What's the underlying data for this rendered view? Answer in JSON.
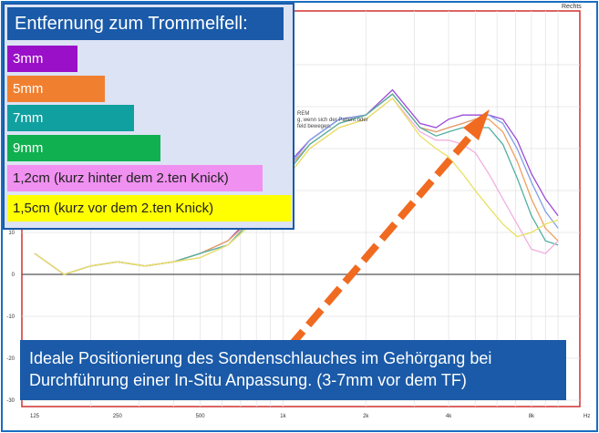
{
  "legend": {
    "title": "Entfernung zum Trommelfell:",
    "items": [
      {
        "label": "3mm",
        "color": "#9a10c8",
        "text_color": "#ffffff"
      },
      {
        "label": "5mm",
        "color": "#f08030",
        "text_color": "#ffffff"
      },
      {
        "label": "7mm",
        "color": "#10a0a0",
        "text_color": "#ffffff"
      },
      {
        "label": "9mm",
        "color": "#10b050",
        "text_color": "#ffffff"
      },
      {
        "label": "1,2cm (kurz hinter dem 2.ten Knick)",
        "color": "#f090f0",
        "text_color": "#222222"
      },
      {
        "label": "1,5cm (kurz vor dem 2.ten Knick)",
        "color": "#ffff00",
        "text_color": "#222222"
      }
    ]
  },
  "caption": {
    "line1": "Ideale Positionierung des Sondenschlauches im Gehörgang bei",
    "line2": "Durchführung einer In-Situ Anpassung. (3-7mm vor dem TF)"
  },
  "side_label": "Rechts",
  "background_note": {
    "lines": [
      "REM",
      "g, wenn sich der Patient oder",
      "feld bewegen."
    ]
  },
  "arrow_color": "#f06a20",
  "chart_data": {
    "type": "line",
    "x_unit": "Hz",
    "x_ticks": [
      125,
      250,
      500,
      1000,
      2000,
      4000,
      8000
    ],
    "x_tick_labels": [
      "125",
      "250",
      "500",
      "1k",
      "2k",
      "4k",
      "8k"
    ],
    "x_axis_label": "Hz",
    "xlim": [
      125,
      12000
    ],
    "y_ticks": [
      -30,
      -20,
      -10,
      0,
      10
    ],
    "y_tick_labels": [
      "-30",
      "-20",
      "-10",
      "0",
      "10"
    ],
    "ylim": [
      -30,
      50
    ],
    "grid": true,
    "log_x": true,
    "x": [
      125,
      160,
      200,
      250,
      315,
      400,
      500,
      630,
      800,
      1000,
      1250,
      1600,
      2000,
      2500,
      3150,
      3600,
      4000,
      4500,
      5000,
      5600,
      6300,
      7100,
      8000,
      9000,
      10000
    ],
    "series": [
      {
        "color": "#9a4ad8",
        "values": [
          5,
          0,
          2,
          3,
          2,
          3,
          5,
          8,
          15,
          25,
          32,
          37,
          38,
          44,
          36,
          35,
          37,
          38,
          38,
          38,
          37,
          32,
          24,
          18,
          14
        ]
      },
      {
        "color": "#7fa0e8",
        "values": [
          5,
          0,
          2,
          3,
          2,
          3,
          5,
          8,
          14,
          24,
          32,
          37,
          38,
          43,
          35,
          34,
          35,
          36,
          37,
          38,
          36,
          30,
          22,
          15,
          11
        ]
      },
      {
        "color": "#f0a060",
        "values": [
          5,
          0,
          2,
          3,
          2,
          3,
          5,
          8,
          14,
          24,
          31,
          36,
          38,
          43,
          35,
          34,
          35,
          36,
          37,
          37,
          34,
          27,
          18,
          11,
          8
        ]
      },
      {
        "color": "#50b0a0",
        "values": [
          5,
          0,
          2,
          3,
          2,
          3,
          5,
          7,
          14,
          23,
          31,
          36,
          38,
          43,
          35,
          33,
          34,
          35,
          35,
          35,
          31,
          23,
          14,
          8,
          7
        ]
      },
      {
        "color": "#f0b0e0",
        "values": [
          5,
          0,
          2,
          3,
          2,
          3,
          4,
          7,
          13,
          22,
          30,
          35,
          37,
          42,
          34,
          32,
          32,
          31,
          29,
          24,
          18,
          12,
          6,
          5,
          8
        ]
      },
      {
        "color": "#e8e060",
        "values": [
          5,
          0,
          2,
          3,
          2,
          3,
          4,
          7,
          13,
          22,
          30,
          35,
          37,
          42,
          33,
          30,
          28,
          24,
          20,
          16,
          12,
          9,
          10,
          12,
          13
        ]
      }
    ]
  }
}
